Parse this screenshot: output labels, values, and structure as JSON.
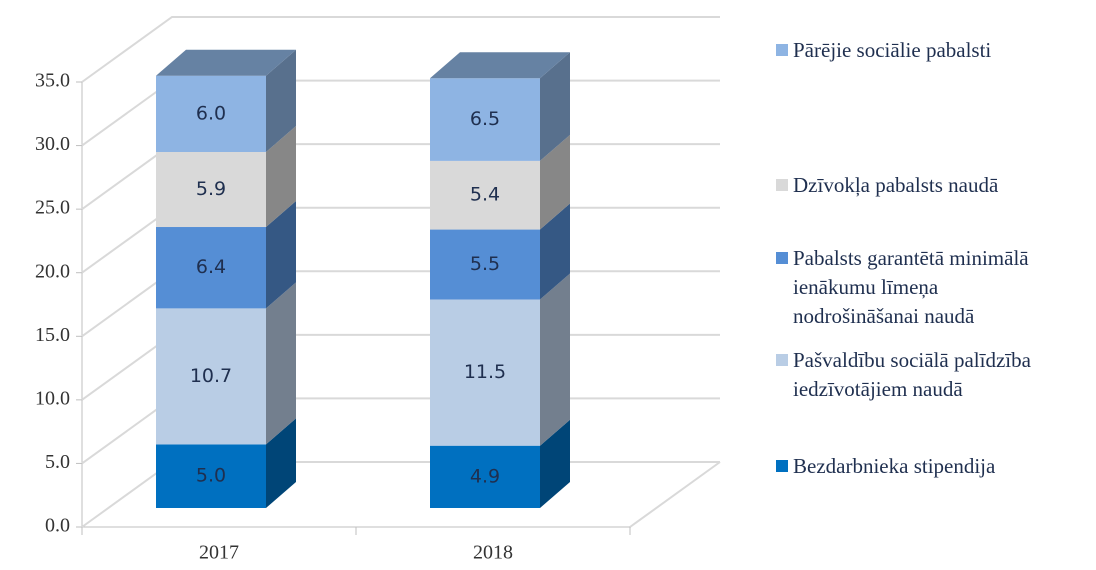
{
  "chart_data": {
    "type": "bar3d_stacked",
    "categories": [
      "2017",
      "2018"
    ],
    "series": [
      {
        "name": "Bezdarbnieka stipendija",
        "color": "#0070c0",
        "values": [
          5.0,
          4.9
        ],
        "value_labels": [
          "5.0",
          "4.9"
        ]
      },
      {
        "name": "Pašvaldību sociālā palīdzība iedzīvotājiem naudā",
        "color": "#b9cde5",
        "values": [
          10.7,
          11.5
        ],
        "value_labels": [
          "10.7",
          "11.5"
        ]
      },
      {
        "name": "Pabalsts garantētā minimālā ienākumu līmeņa nodrošināšanai naudā",
        "color": "#558ed5",
        "values": [
          6.4,
          5.5
        ],
        "value_labels": [
          "6.4",
          "5.5"
        ]
      },
      {
        "name": "Dzīvokļa pabalsts naudā",
        "color": "#d9d9d9",
        "values": [
          5.9,
          5.4
        ],
        "value_labels": [
          "5.9",
          "5.4"
        ]
      },
      {
        "name": "Pārējie sociālie pabalsti",
        "color": "#8eb4e3",
        "values": [
          6.0,
          6.5
        ],
        "value_labels": [
          "6.0",
          "6.5"
        ]
      }
    ],
    "ylim": [
      0,
      35
    ],
    "yticks": [
      {
        "value": 0,
        "label": "0.0"
      },
      {
        "value": 5,
        "label": "5.0"
      },
      {
        "value": 10,
        "label": "10.0"
      },
      {
        "value": 15,
        "label": "15.0"
      },
      {
        "value": 20,
        "label": "20.0"
      },
      {
        "value": 25,
        "label": "25.0"
      },
      {
        "value": 30,
        "label": "30.0"
      },
      {
        "value": 35,
        "label": "35.0"
      }
    ],
    "grid": true,
    "legend": "right"
  }
}
